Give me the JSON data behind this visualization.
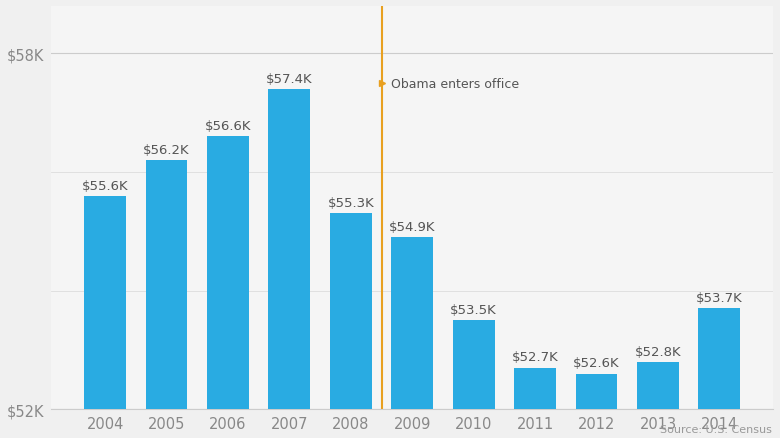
{
  "categories": [
    "2004",
    "2005",
    "2006",
    "2007",
    "2008",
    "2009",
    "2010",
    "2011",
    "2012",
    "2013",
    "2014"
  ],
  "values": [
    55.6,
    56.2,
    56.6,
    57.4,
    55.3,
    54.9,
    53.5,
    52.7,
    52.6,
    52.8,
    53.7
  ],
  "labels": [
    "$55.6K",
    "$56.2K",
    "$56.6K",
    "$57.4K",
    "$55.3K",
    "$54.9K",
    "$53.5K",
    "$52.7K",
    "$52.6K",
    "$52.8K",
    "$53.7K"
  ],
  "bar_color": "#29ABE2",
  "background_color": "#f0f0f0",
  "plot_bg_color": "#f5f5f5",
  "grid_color": "#ffffff",
  "ylim_min": 52.0,
  "ylim_max": 58.8,
  "yticks": [
    52,
    58
  ],
  "ytick_labels": [
    "$52K",
    "$58K"
  ],
  "annotation_text": "Obama enters office",
  "vline_color": "#e8a020",
  "source_text": "Source: U.S. Census",
  "label_fontsize": 9.5,
  "tick_fontsize": 10.5,
  "source_fontsize": 8
}
